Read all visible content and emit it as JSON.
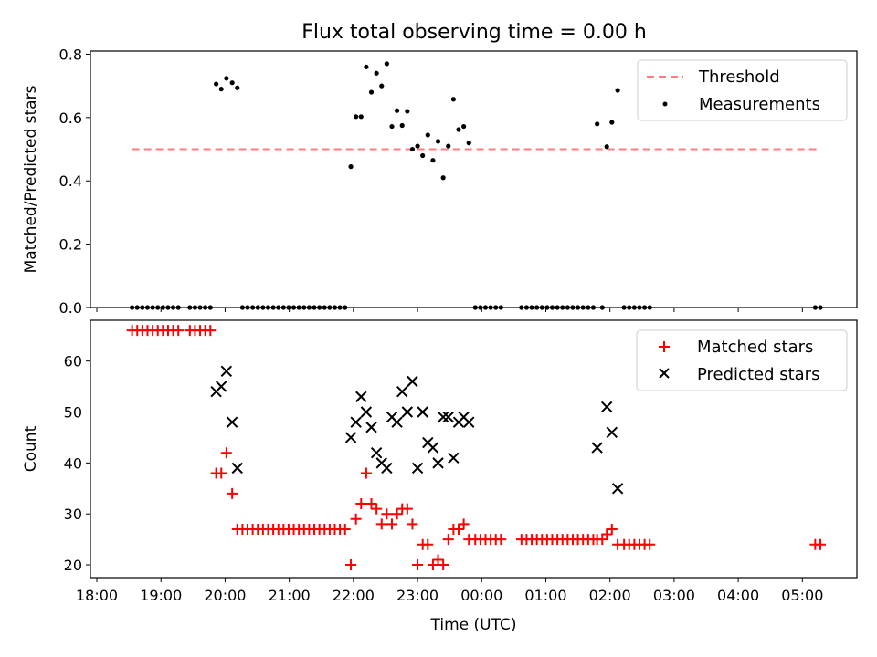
{
  "chart_data": [
    {
      "type": "scatter",
      "title": "Flux total observing time = 0.00 h",
      "xlabel": "",
      "ylabel": "Matched/Predicted stars",
      "xlim": [
        17.9,
        29.85
      ],
      "ylim": [
        0,
        0.81
      ],
      "xticks": [
        18,
        19,
        20,
        21,
        22,
        23,
        24,
        25,
        26,
        27,
        28,
        29
      ],
      "yticks": [
        0.0,
        0.2,
        0.4,
        0.6,
        0.8
      ],
      "ytick_labels": [
        "0.0",
        "0.2",
        "0.4",
        "0.6",
        "0.8"
      ],
      "legend_position": "top-right",
      "threshold": {
        "name": "Threshold",
        "value": 0.5,
        "x_range": [
          18.55,
          29.25
        ],
        "color": "#ff7f7f",
        "style": "dashed"
      },
      "series": [
        {
          "name": "Measurements",
          "color": "#000000",
          "marker": "dot",
          "points": [
            [
              18.55,
              0
            ],
            [
              18.63,
              0
            ],
            [
              18.71,
              0
            ],
            [
              18.79,
              0
            ],
            [
              18.87,
              0
            ],
            [
              18.95,
              0
            ],
            [
              19.03,
              0
            ],
            [
              19.11,
              0
            ],
            [
              19.19,
              0
            ],
            [
              19.27,
              0
            ],
            [
              19.45,
              0
            ],
            [
              19.53,
              0
            ],
            [
              19.61,
              0
            ],
            [
              19.69,
              0
            ],
            [
              19.77,
              0
            ],
            [
              19.86,
              0.706
            ],
            [
              19.94,
              0.69
            ],
            [
              20.02,
              0.724
            ],
            [
              20.11,
              0.71
            ],
            [
              20.19,
              0.694
            ],
            [
              20.27,
              0
            ],
            [
              20.35,
              0
            ],
            [
              20.43,
              0
            ],
            [
              20.51,
              0
            ],
            [
              20.59,
              0
            ],
            [
              20.67,
              0
            ],
            [
              20.75,
              0
            ],
            [
              20.83,
              0
            ],
            [
              20.91,
              0
            ],
            [
              20.99,
              0
            ],
            [
              21.07,
              0
            ],
            [
              21.15,
              0
            ],
            [
              21.23,
              0
            ],
            [
              21.31,
              0
            ],
            [
              21.39,
              0
            ],
            [
              21.47,
              0
            ],
            [
              21.55,
              0
            ],
            [
              21.63,
              0
            ],
            [
              21.71,
              0
            ],
            [
              21.79,
              0
            ],
            [
              21.87,
              0
            ],
            [
              21.96,
              0.445
            ],
            [
              22.04,
              0.603
            ],
            [
              22.12,
              0.603
            ],
            [
              22.2,
              0.76
            ],
            [
              22.28,
              0.68
            ],
            [
              22.36,
              0.74
            ],
            [
              22.44,
              0.7
            ],
            [
              22.52,
              0.77
            ],
            [
              22.6,
              0.572
            ],
            [
              22.68,
              0.622
            ],
            [
              22.76,
              0.575
            ],
            [
              22.84,
              0.62
            ],
            [
              22.92,
              0.5
            ],
            [
              23.0,
              0.51
            ],
            [
              23.08,
              0.48
            ],
            [
              23.16,
              0.545
            ],
            [
              23.24,
              0.465
            ],
            [
              23.32,
              0.525
            ],
            [
              23.4,
              0.41
            ],
            [
              23.48,
              0.51
            ],
            [
              23.56,
              0.658
            ],
            [
              23.64,
              0.562
            ],
            [
              23.72,
              0.572
            ],
            [
              23.8,
              0.52
            ],
            [
              23.9,
              0
            ],
            [
              23.98,
              0
            ],
            [
              24.06,
              0
            ],
            [
              24.14,
              0
            ],
            [
              24.22,
              0
            ],
            [
              24.3,
              0
            ],
            [
              24.62,
              0
            ],
            [
              24.7,
              0
            ],
            [
              24.78,
              0
            ],
            [
              24.86,
              0
            ],
            [
              24.94,
              0
            ],
            [
              25.02,
              0
            ],
            [
              25.1,
              0
            ],
            [
              25.18,
              0
            ],
            [
              25.26,
              0
            ],
            [
              25.34,
              0
            ],
            [
              25.42,
              0
            ],
            [
              25.5,
              0
            ],
            [
              25.58,
              0
            ],
            [
              25.66,
              0
            ],
            [
              25.74,
              0
            ],
            [
              25.8,
              0.58
            ],
            [
              25.88,
              0
            ],
            [
              25.95,
              0.508
            ],
            [
              26.03,
              0.585
            ],
            [
              26.12,
              0.686
            ],
            [
              26.22,
              0
            ],
            [
              26.3,
              0
            ],
            [
              26.38,
              0
            ],
            [
              26.46,
              0
            ],
            [
              26.54,
              0
            ],
            [
              26.62,
              0
            ],
            [
              29.2,
              0
            ],
            [
              29.28,
              0
            ]
          ]
        }
      ]
    },
    {
      "type": "scatter",
      "title": "",
      "xlabel": "Time (UTC)",
      "ylabel": "Count",
      "xlim": [
        17.9,
        29.85
      ],
      "ylim": [
        17.5,
        68
      ],
      "xticks": [
        18,
        19,
        20,
        21,
        22,
        23,
        24,
        25,
        26,
        27,
        28,
        29
      ],
      "xtick_labels": [
        "18:00",
        "19:00",
        "20:00",
        "21:00",
        "22:00",
        "23:00",
        "00:00",
        "01:00",
        "02:00",
        "03:00",
        "04:00",
        "05:00"
      ],
      "yticks": [
        20,
        30,
        40,
        50,
        60
      ],
      "ytick_labels": [
        "20",
        "30",
        "40",
        "50",
        "60"
      ],
      "legend_position": "top-right",
      "series": [
        {
          "name": "Matched stars",
          "color": "#ff0000",
          "marker": "plus",
          "points": [
            [
              18.55,
              66
            ],
            [
              18.63,
              66
            ],
            [
              18.71,
              66
            ],
            [
              18.79,
              66
            ],
            [
              18.87,
              66
            ],
            [
              18.95,
              66
            ],
            [
              19.03,
              66
            ],
            [
              19.11,
              66
            ],
            [
              19.19,
              66
            ],
            [
              19.27,
              66
            ],
            [
              19.45,
              66
            ],
            [
              19.53,
              66
            ],
            [
              19.61,
              66
            ],
            [
              19.69,
              66
            ],
            [
              19.77,
              66
            ],
            [
              19.86,
              38
            ],
            [
              19.94,
              38
            ],
            [
              20.02,
              42
            ],
            [
              20.11,
              34
            ],
            [
              20.19,
              27
            ],
            [
              20.27,
              27
            ],
            [
              20.35,
              27
            ],
            [
              20.43,
              27
            ],
            [
              20.51,
              27
            ],
            [
              20.59,
              27
            ],
            [
              20.67,
              27
            ],
            [
              20.75,
              27
            ],
            [
              20.83,
              27
            ],
            [
              20.91,
              27
            ],
            [
              20.99,
              27
            ],
            [
              21.07,
              27
            ],
            [
              21.15,
              27
            ],
            [
              21.23,
              27
            ],
            [
              21.31,
              27
            ],
            [
              21.39,
              27
            ],
            [
              21.47,
              27
            ],
            [
              21.55,
              27
            ],
            [
              21.63,
              27
            ],
            [
              21.71,
              27
            ],
            [
              21.79,
              27
            ],
            [
              21.87,
              27
            ],
            [
              21.96,
              20
            ],
            [
              22.04,
              29
            ],
            [
              22.12,
              32
            ],
            [
              22.2,
              38
            ],
            [
              22.28,
              32
            ],
            [
              22.36,
              31
            ],
            [
              22.44,
              28
            ],
            [
              22.52,
              30
            ],
            [
              22.6,
              28
            ],
            [
              22.68,
              30
            ],
            [
              22.76,
              31
            ],
            [
              22.84,
              31
            ],
            [
              22.92,
              28
            ],
            [
              23.0,
              20
            ],
            [
              23.08,
              24
            ],
            [
              23.16,
              24
            ],
            [
              23.24,
              20
            ],
            [
              23.32,
              21
            ],
            [
              23.4,
              20
            ],
            [
              23.48,
              25
            ],
            [
              23.56,
              27
            ],
            [
              23.64,
              27
            ],
            [
              23.72,
              28
            ],
            [
              23.8,
              25
            ],
            [
              23.9,
              25
            ],
            [
              23.98,
              25
            ],
            [
              24.06,
              25
            ],
            [
              24.14,
              25
            ],
            [
              24.22,
              25
            ],
            [
              24.3,
              25
            ],
            [
              24.62,
              25
            ],
            [
              24.7,
              25
            ],
            [
              24.78,
              25
            ],
            [
              24.86,
              25
            ],
            [
              24.94,
              25
            ],
            [
              25.02,
              25
            ],
            [
              25.1,
              25
            ],
            [
              25.18,
              25
            ],
            [
              25.26,
              25
            ],
            [
              25.34,
              25
            ],
            [
              25.42,
              25
            ],
            [
              25.5,
              25
            ],
            [
              25.58,
              25
            ],
            [
              25.66,
              25
            ],
            [
              25.74,
              25
            ],
            [
              25.8,
              25
            ],
            [
              25.88,
              25
            ],
            [
              25.95,
              26
            ],
            [
              26.03,
              27
            ],
            [
              26.12,
              24
            ],
            [
              26.22,
              24
            ],
            [
              26.3,
              24
            ],
            [
              26.38,
              24
            ],
            [
              26.46,
              24
            ],
            [
              26.54,
              24
            ],
            [
              26.62,
              24
            ],
            [
              29.2,
              24
            ],
            [
              29.28,
              24
            ]
          ]
        },
        {
          "name": "Predicted stars",
          "color": "#000000",
          "marker": "x",
          "points": [
            [
              19.86,
              54
            ],
            [
              19.94,
              55
            ],
            [
              20.02,
              58
            ],
            [
              20.11,
              48
            ],
            [
              20.19,
              39
            ],
            [
              21.96,
              45
            ],
            [
              22.04,
              48
            ],
            [
              22.12,
              53
            ],
            [
              22.2,
              50
            ],
            [
              22.28,
              47
            ],
            [
              22.36,
              42
            ],
            [
              22.44,
              40
            ],
            [
              22.52,
              39
            ],
            [
              22.6,
              49
            ],
            [
              22.68,
              48
            ],
            [
              22.76,
              54
            ],
            [
              22.84,
              50
            ],
            [
              22.92,
              56
            ],
            [
              23.0,
              39
            ],
            [
              23.08,
              50
            ],
            [
              23.16,
              44
            ],
            [
              23.24,
              43
            ],
            [
              23.32,
              40
            ],
            [
              23.4,
              49
            ],
            [
              23.48,
              49
            ],
            [
              23.56,
              41
            ],
            [
              23.64,
              48
            ],
            [
              23.72,
              49
            ],
            [
              23.8,
              48
            ],
            [
              25.8,
              43
            ],
            [
              25.95,
              51
            ],
            [
              26.03,
              46
            ],
            [
              26.12,
              35
            ]
          ]
        }
      ]
    }
  ]
}
